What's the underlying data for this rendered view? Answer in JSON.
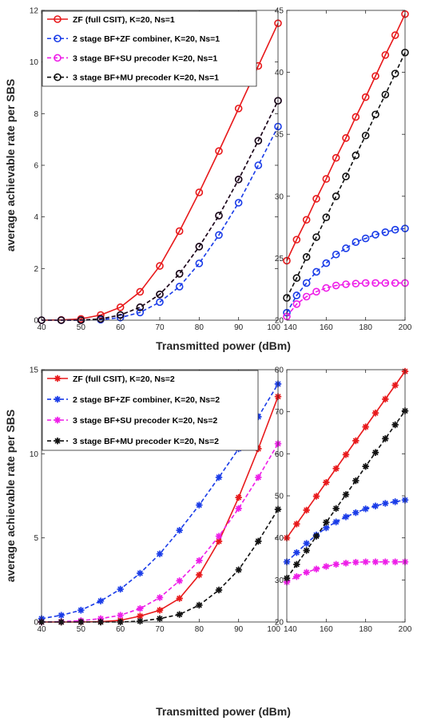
{
  "chart_data": [
    {
      "type": "line",
      "xlabel": "Transmitted power (dBm)",
      "ylabel": "average achievable rate per SBS",
      "legend_position": "top-left",
      "panels": [
        {
          "xlim": [
            40,
            100
          ],
          "ylim": [
            0,
            12
          ],
          "xticks": [
            "40",
            "50",
            "60",
            "70",
            "80",
            "90",
            "100"
          ],
          "yticks": [
            "0",
            "2",
            "4",
            "6",
            "8",
            "10",
            "12"
          ],
          "x": [
            40,
            45,
            50,
            55,
            60,
            65,
            70,
            75,
            80,
            85,
            90,
            95,
            100
          ],
          "series": [
            {
              "name": "ZF (full CSIT), K=20, Ns=1",
              "marker": "circle",
              "color": "#e8191b",
              "dashed": false,
              "values": [
                0,
                0.01,
                0.05,
                0.2,
                0.5,
                1.1,
                2.1,
                3.45,
                4.95,
                6.55,
                8.2,
                9.85,
                11.5
              ]
            },
            {
              "name": "2 stage BF+ZF combiner, K=20, Ns=1",
              "marker": "circle",
              "color": "#1a3ce8",
              "dashed": true,
              "values": [
                0,
                0,
                0,
                0.02,
                0.1,
                0.3,
                0.7,
                1.3,
                2.2,
                3.3,
                4.55,
                6.0,
                7.5
              ]
            },
            {
              "name": "3 stage BF+SU precoder K=20, Ns=1",
              "marker": "circle",
              "color": "#ee1ee8",
              "dashed": true,
              "values": [
                0,
                0,
                0,
                0.05,
                0.2,
                0.5,
                1.0,
                1.8,
                2.85,
                4.05,
                5.45,
                6.95,
                8.5
              ]
            },
            {
              "name": "3 stage BF+MU precoder K=20, Ns=1",
              "marker": "circle",
              "color": "#111111",
              "dashed": true,
              "values": [
                0,
                0,
                0,
                0.05,
                0.2,
                0.5,
                1.0,
                1.8,
                2.85,
                4.05,
                5.45,
                6.95,
                8.5
              ]
            }
          ]
        },
        {
          "xlim": [
            140,
            200
          ],
          "ylim": [
            20,
            45
          ],
          "xticks": [
            "140",
            "160",
            "180",
            "200"
          ],
          "yticks": [
            "20",
            "25",
            "30",
            "35",
            "40",
            "45"
          ],
          "x": [
            140,
            145,
            150,
            155,
            160,
            165,
            170,
            175,
            180,
            185,
            190,
            195,
            200
          ],
          "series": [
            {
              "name": "ZF (full CSIT), K=20, Ns=1",
              "values": [
                24.8,
                26.5,
                28.1,
                29.8,
                31.4,
                33.1,
                34.7,
                36.4,
                38.0,
                39.7,
                41.4,
                43.0,
                44.7
              ]
            },
            {
              "name": "2 stage BF+ZF combiner, K=20, Ns=1",
              "values": [
                20.6,
                22.0,
                23.0,
                23.9,
                24.6,
                25.3,
                25.8,
                26.3,
                26.6,
                26.9,
                27.1,
                27.3,
                27.4
              ]
            },
            {
              "name": "3 stage BF+SU precoder K=20, Ns=1",
              "values": [
                20.3,
                21.3,
                21.9,
                22.3,
                22.6,
                22.8,
                22.9,
                22.95,
                23.0,
                23.0,
                23.0,
                23.0,
                23.0
              ]
            },
            {
              "name": "3 stage BF+MU precoder K=20, Ns=1",
              "values": [
                21.8,
                23.4,
                25.1,
                26.7,
                28.3,
                30.0,
                31.6,
                33.3,
                34.9,
                36.6,
                38.2,
                39.9,
                41.6
              ]
            }
          ]
        }
      ]
    },
    {
      "type": "line",
      "xlabel": "Transmitted power (dBm)",
      "ylabel": "average achievable rate per SBS",
      "legend_position": "top-left",
      "panels": [
        {
          "xlim": [
            40,
            100
          ],
          "ylim": [
            0,
            15
          ],
          "xticks": [
            "40",
            "50",
            "60",
            "70",
            "80",
            "90",
            "100"
          ],
          "yticks": [
            "0",
            "5",
            "10",
            "15"
          ],
          "x": [
            40,
            45,
            50,
            55,
            60,
            65,
            70,
            75,
            80,
            85,
            90,
            95,
            100
          ],
          "series": [
            {
              "name": "ZF (full CSIT), K=20, Ns=2",
              "marker": "star",
              "color": "#e8191b",
              "dashed": false,
              "values": [
                0,
                0,
                0,
                0.02,
                0.1,
                0.35,
                0.7,
                1.4,
                2.8,
                4.8,
                7.4,
                10.3,
                13.4
              ]
            },
            {
              "name": "2 stage BF+ZF combiner, K=20, Ns=2",
              "marker": "star",
              "color": "#1a3ce8",
              "dashed": true,
              "values": [
                0.2,
                0.4,
                0.7,
                1.25,
                1.95,
                2.9,
                4.05,
                5.45,
                6.95,
                8.6,
                10.3,
                12.2,
                14.15
              ]
            },
            {
              "name": "3 stage BF+SU precoder K=20, Ns=2",
              "marker": "star",
              "color": "#ee1ee8",
              "dashed": true,
              "values": [
                0,
                0.02,
                0.08,
                0.2,
                0.4,
                0.8,
                1.45,
                2.45,
                3.65,
                5.1,
                6.75,
                8.6,
                10.6
              ]
            },
            {
              "name": "3 stage BF+MU precoder K=20, Ns=2",
              "marker": "star",
              "color": "#111111",
              "dashed": true,
              "values": [
                0,
                0,
                0,
                0,
                0,
                0.05,
                0.2,
                0.45,
                1.0,
                1.9,
                3.1,
                4.8,
                6.7
              ]
            }
          ]
        },
        {
          "xlim": [
            140,
            200
          ],
          "ylim": [
            20,
            80
          ],
          "xticks": [
            "140",
            "160",
            "180",
            "200"
          ],
          "yticks": [
            "20",
            "30",
            "40",
            "50",
            "60",
            "70",
            "80"
          ],
          "x": [
            140,
            145,
            150,
            155,
            160,
            165,
            170,
            175,
            180,
            185,
            190,
            195,
            200
          ],
          "series": [
            {
              "name": "ZF (full CSIT), K=20, Ns=2",
              "values": [
                40.0,
                43.3,
                46.6,
                49.9,
                53.2,
                56.5,
                59.8,
                63.1,
                66.4,
                69.7,
                73.0,
                76.3,
                79.6
              ]
            },
            {
              "name": "2 stage BF+ZF combiner, K=20, Ns=2",
              "values": [
                34.3,
                36.5,
                38.7,
                40.7,
                42.4,
                43.8,
                45.0,
                46.0,
                46.9,
                47.6,
                48.2,
                48.6,
                49.0
              ]
            },
            {
              "name": "3 stage BF+SU precoder K=20, Ns=2",
              "values": [
                29.5,
                30.8,
                31.8,
                32.6,
                33.2,
                33.7,
                34.0,
                34.2,
                34.3,
                34.3,
                34.3,
                34.3,
                34.3
              ]
            },
            {
              "name": "3 stage BF+MU precoder K=20, Ns=2",
              "values": [
                30.4,
                33.7,
                37.0,
                40.4,
                43.7,
                47.0,
                50.3,
                53.6,
                57.0,
                60.3,
                63.6,
                66.9,
                70.2
              ]
            }
          ]
        }
      ]
    }
  ]
}
